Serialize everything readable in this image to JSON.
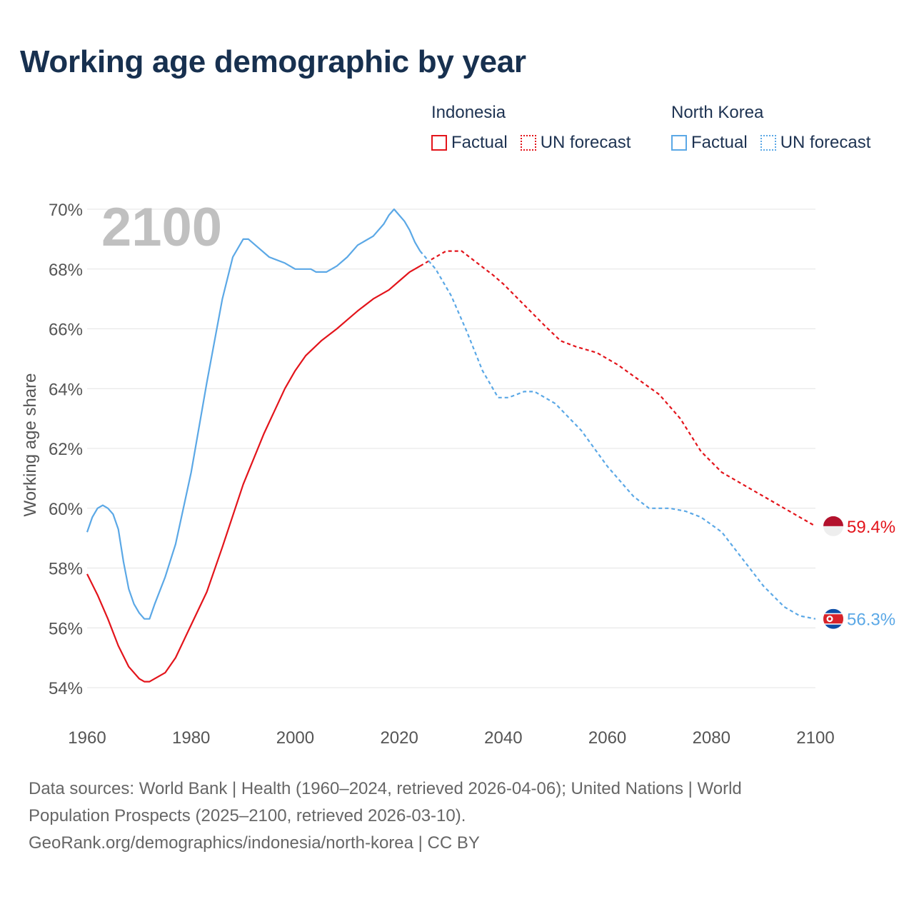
{
  "title": "Working age demographic by year",
  "legend": {
    "groups": [
      {
        "name": "Indonesia",
        "factual_label": "Factual",
        "forecast_label": "UN forecast",
        "color": "#e3141b"
      },
      {
        "name": "North Korea",
        "factual_label": "Factual",
        "forecast_label": "UN forecast",
        "color": "#5ba8e6"
      }
    ]
  },
  "year_marker": "2100",
  "sources": {
    "line1": "Data sources: World Bank | Health (1960–2024, retrieved 2026-04-06); United Nations | World",
    "line2": "Population Prospects (2025–2100, retrieved 2026-03-10).",
    "line3": "GeoRank.org/demographics/indonesia/north-korea | CC BY"
  },
  "chart_data": {
    "type": "line",
    "title": "Working age demographic by year",
    "xlabel": "",
    "ylabel": "Working age share",
    "xlim": [
      1960,
      2100
    ],
    "ylim": [
      54,
      70
    ],
    "x_ticks": [
      1960,
      1980,
      2000,
      2020,
      2040,
      2060,
      2080,
      2100
    ],
    "y_ticks": [
      54,
      56,
      58,
      60,
      62,
      64,
      66,
      68,
      70
    ],
    "y_tick_labels": [
      "54%",
      "56%",
      "58%",
      "60%",
      "62%",
      "64%",
      "66%",
      "68%",
      "70%"
    ],
    "factual_end_year": 2024,
    "grid": true,
    "series": [
      {
        "name": "Indonesia",
        "color": "#e3141b",
        "end_label": "59.4%",
        "points": [
          [
            1960,
            57.8
          ],
          [
            1962,
            57.1
          ],
          [
            1964,
            56.3
          ],
          [
            1966,
            55.4
          ],
          [
            1968,
            54.7
          ],
          [
            1970,
            54.3
          ],
          [
            1971,
            54.2
          ],
          [
            1972,
            54.2
          ],
          [
            1975,
            54.5
          ],
          [
            1977,
            55.0
          ],
          [
            1980,
            56.1
          ],
          [
            1983,
            57.2
          ],
          [
            1986,
            58.7
          ],
          [
            1990,
            60.8
          ],
          [
            1994,
            62.5
          ],
          [
            1998,
            64.0
          ],
          [
            2000,
            64.6
          ],
          [
            2002,
            65.1
          ],
          [
            2005,
            65.6
          ],
          [
            2008,
            66.0
          ],
          [
            2010,
            66.3
          ],
          [
            2012,
            66.6
          ],
          [
            2015,
            67.0
          ],
          [
            2018,
            67.3
          ],
          [
            2020,
            67.6
          ],
          [
            2022,
            67.9
          ],
          [
            2024,
            68.1
          ],
          [
            2027,
            68.4
          ],
          [
            2029,
            68.6
          ],
          [
            2032,
            68.6
          ],
          [
            2035,
            68.2
          ],
          [
            2038,
            67.8
          ],
          [
            2040,
            67.5
          ],
          [
            2044,
            66.8
          ],
          [
            2048,
            66.1
          ],
          [
            2051,
            65.6
          ],
          [
            2054,
            65.4
          ],
          [
            2058,
            65.2
          ],
          [
            2062,
            64.8
          ],
          [
            2066,
            64.3
          ],
          [
            2070,
            63.8
          ],
          [
            2074,
            63.0
          ],
          [
            2078,
            61.9
          ],
          [
            2082,
            61.2
          ],
          [
            2086,
            60.8
          ],
          [
            2090,
            60.4
          ],
          [
            2094,
            60.0
          ],
          [
            2098,
            59.6
          ],
          [
            2100,
            59.4
          ]
        ]
      },
      {
        "name": "North Korea",
        "color": "#5ba8e6",
        "end_label": "56.3%",
        "points": [
          [
            1960,
            59.2
          ],
          [
            1961,
            59.7
          ],
          [
            1962,
            60.0
          ],
          [
            1963,
            60.1
          ],
          [
            1964,
            60.0
          ],
          [
            1965,
            59.8
          ],
          [
            1966,
            59.3
          ],
          [
            1967,
            58.2
          ],
          [
            1968,
            57.3
          ],
          [
            1969,
            56.8
          ],
          [
            1970,
            56.5
          ],
          [
            1971,
            56.3
          ],
          [
            1972,
            56.3
          ],
          [
            1973,
            56.8
          ],
          [
            1975,
            57.7
          ],
          [
            1977,
            58.8
          ],
          [
            1980,
            61.2
          ],
          [
            1983,
            64.2
          ],
          [
            1986,
            67.0
          ],
          [
            1988,
            68.4
          ],
          [
            1990,
            69.0
          ],
          [
            1991,
            69.0
          ],
          [
            1993,
            68.7
          ],
          [
            1995,
            68.4
          ],
          [
            1998,
            68.2
          ],
          [
            2000,
            68.0
          ],
          [
            2003,
            68.0
          ],
          [
            2004,
            67.9
          ],
          [
            2006,
            67.9
          ],
          [
            2008,
            68.1
          ],
          [
            2010,
            68.4
          ],
          [
            2012,
            68.8
          ],
          [
            2015,
            69.1
          ],
          [
            2017,
            69.5
          ],
          [
            2018,
            69.8
          ],
          [
            2019,
            70.0
          ],
          [
            2020,
            69.8
          ],
          [
            2021,
            69.6
          ],
          [
            2022,
            69.3
          ],
          [
            2023,
            68.9
          ],
          [
            2024,
            68.6
          ],
          [
            2027,
            68.0
          ],
          [
            2030,
            67.1
          ],
          [
            2033,
            65.9
          ],
          [
            2036,
            64.6
          ],
          [
            2039,
            63.7
          ],
          [
            2041,
            63.7
          ],
          [
            2044,
            63.9
          ],
          [
            2046,
            63.9
          ],
          [
            2050,
            63.5
          ],
          [
            2055,
            62.6
          ],
          [
            2060,
            61.4
          ],
          [
            2065,
            60.4
          ],
          [
            2068,
            60.0
          ],
          [
            2072,
            60.0
          ],
          [
            2075,
            59.9
          ],
          [
            2078,
            59.7
          ],
          [
            2082,
            59.2
          ],
          [
            2086,
            58.3
          ],
          [
            2090,
            57.4
          ],
          [
            2094,
            56.7
          ],
          [
            2097,
            56.4
          ],
          [
            2100,
            56.3
          ]
        ]
      }
    ]
  }
}
